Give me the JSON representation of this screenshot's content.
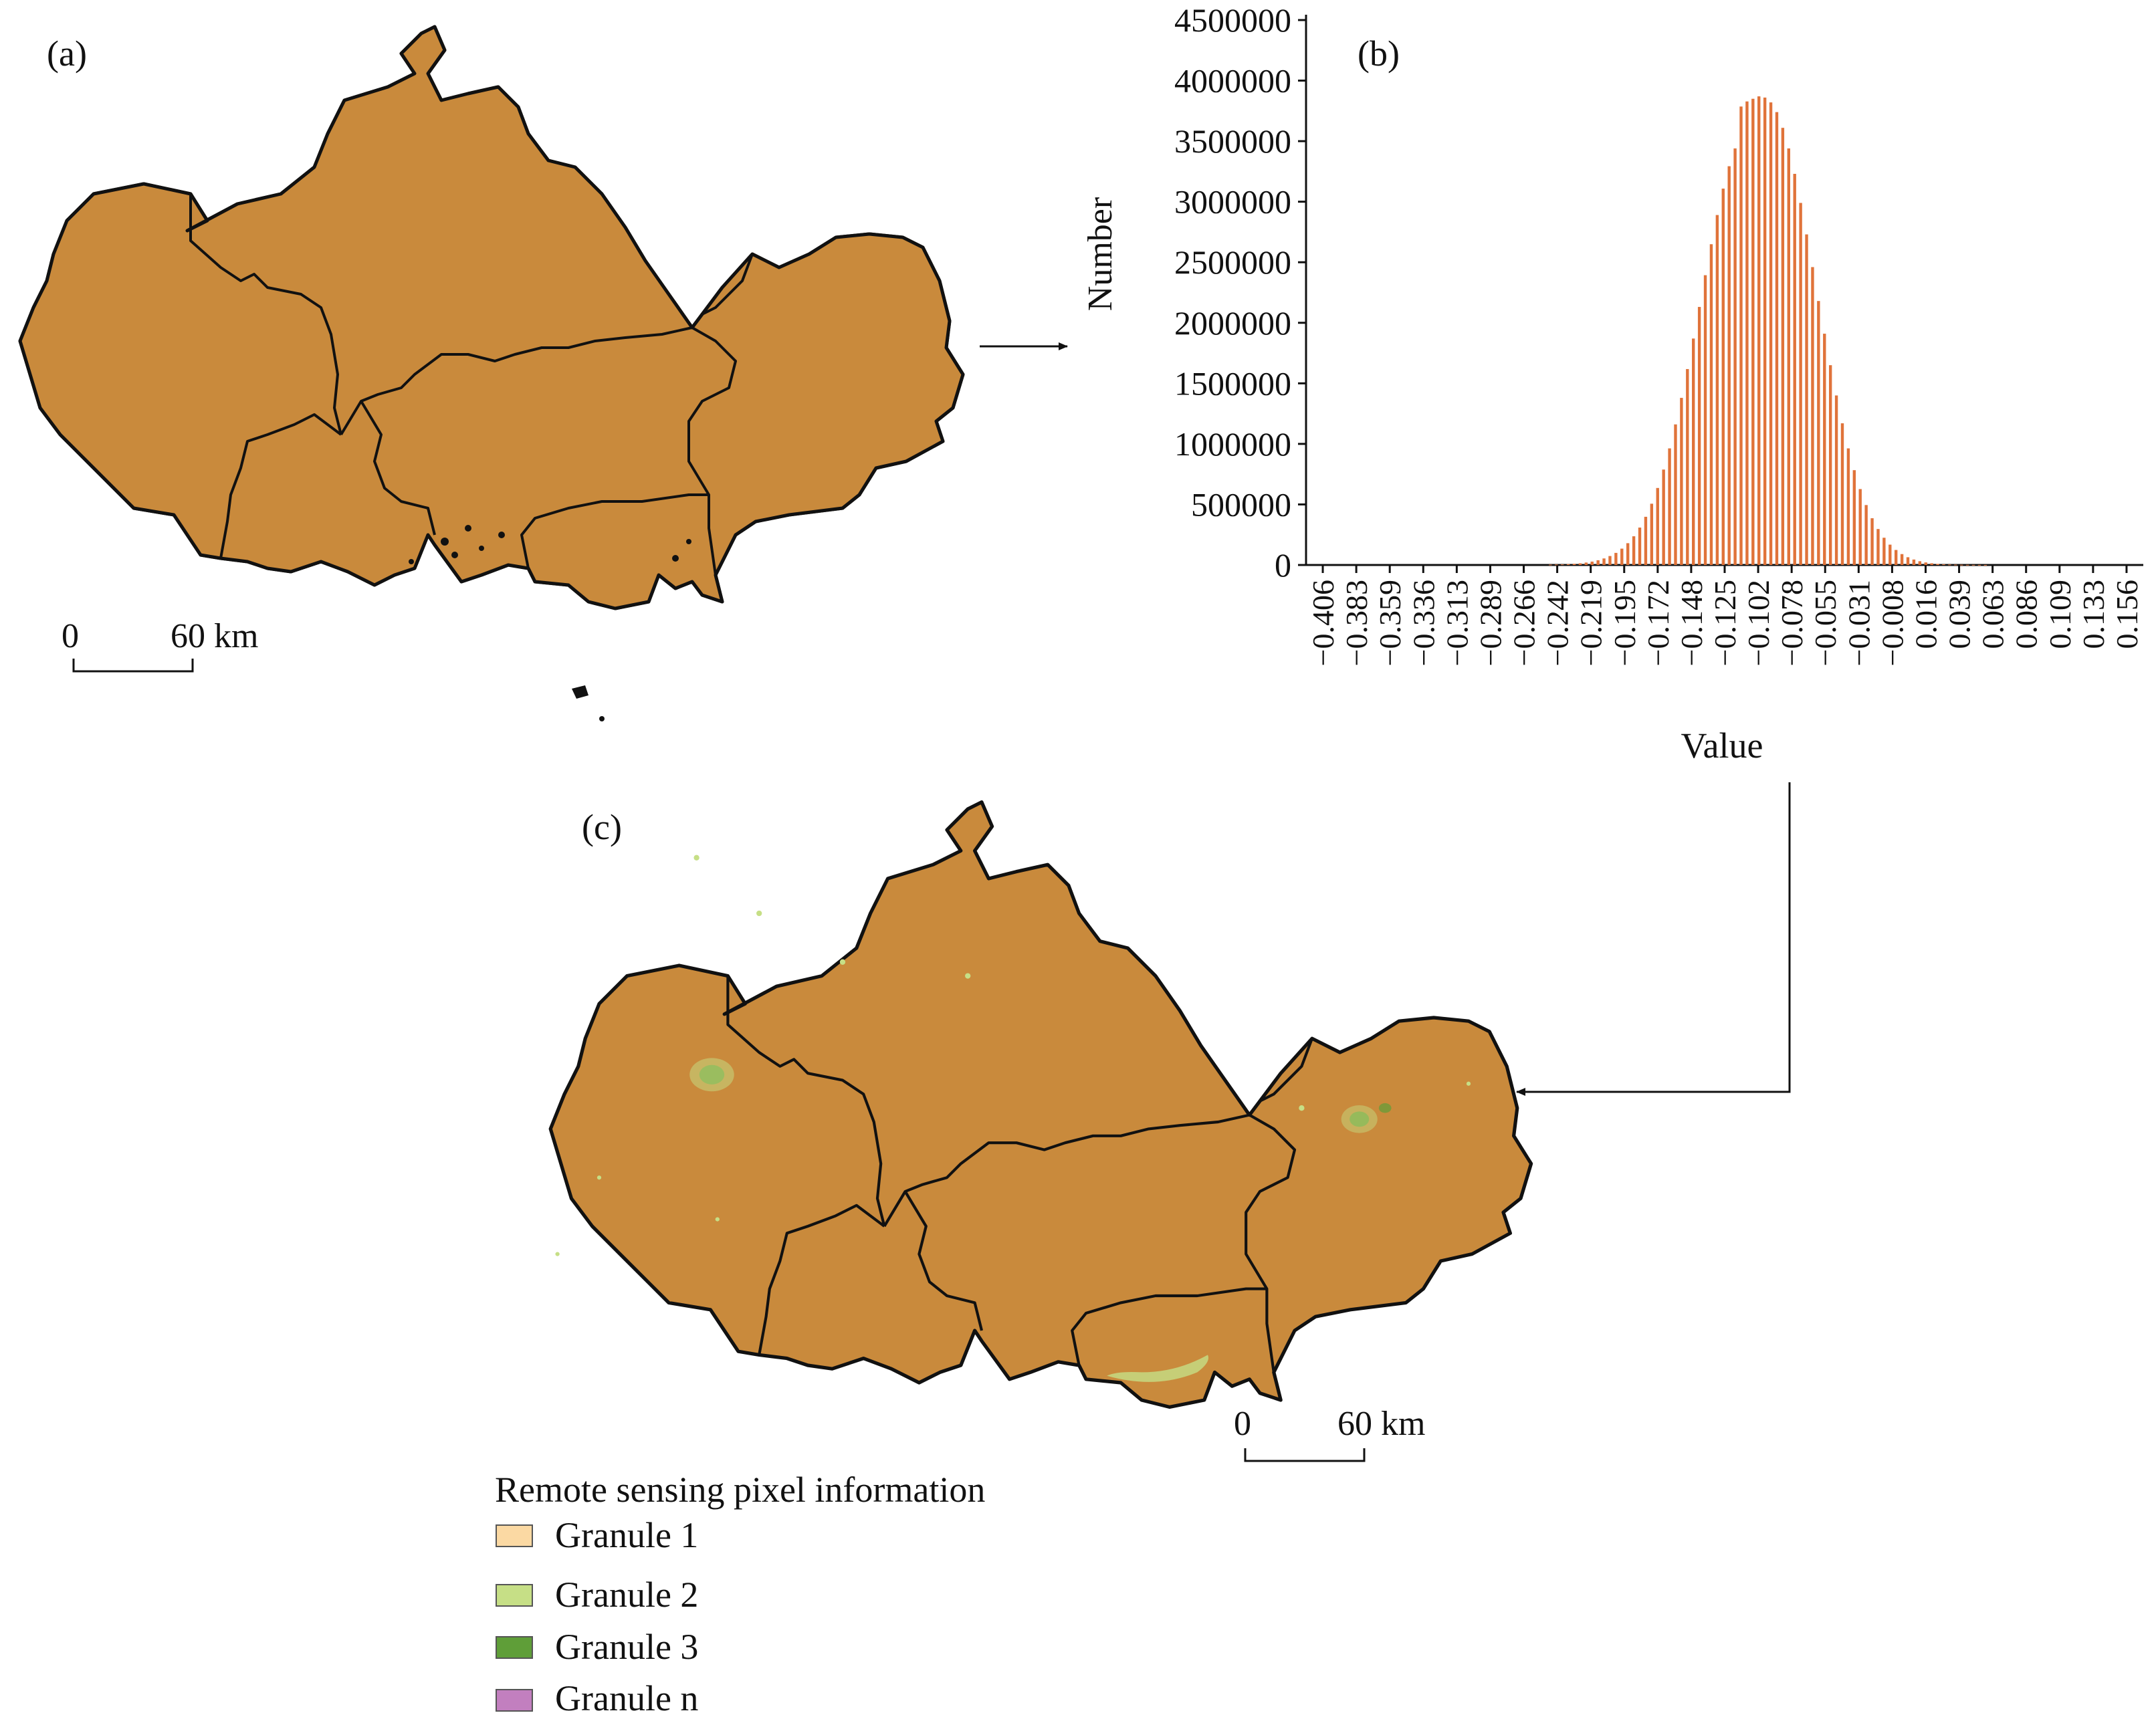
{
  "panels": {
    "a": {
      "label": "(a)"
    },
    "b": {
      "label": "(b)"
    },
    "c": {
      "label": "(c)"
    }
  },
  "scale_bar_a": {
    "start": "0",
    "end": "60 km"
  },
  "scale_bar_c": {
    "start": "0",
    "end": "60 km"
  },
  "map_colors": {
    "ndvi_base": "#c98a3c",
    "ndvi_dark": "#a5612a",
    "ndvi_light": "#e7b05c",
    "boundary": "#111111",
    "granule_light_green": "#c9dd87",
    "granule_green": "#6aa63c"
  },
  "chart_data": {
    "type": "bar",
    "title": "",
    "xlabel": "Value",
    "ylabel": "Number",
    "ylim": [
      0,
      4500000
    ],
    "y_ticks": [
      "4500000",
      "4000000",
      "3500000",
      "3000000",
      "2500000",
      "2000000",
      "1500000",
      "1000000",
      "500000",
      "0"
    ],
    "x_tick_labels": [
      "−0.406",
      "−0.383",
      "−0.359",
      "−0.336",
      "−0.313",
      "−0.289",
      "−0.266",
      "−0.242",
      "−0.219",
      "−0.195",
      "−0.172",
      "−0.148",
      "−0.125",
      "−0.102",
      "−0.078",
      "−0.055",
      "−0.031",
      "−0.008",
      "0.016",
      "0.039",
      "0.063",
      "0.086",
      "0.109",
      "0.133",
      "0.156"
    ],
    "x_range": [
      -0.406,
      0.156
    ],
    "bar_color": "#e0733a",
    "bars": {
      "x": [
        -0.242,
        -0.238,
        -0.234,
        -0.23,
        -0.226,
        -0.222,
        -0.218,
        -0.214,
        -0.21,
        -0.206,
        -0.202,
        -0.198,
        -0.194,
        -0.19,
        -0.186,
        -0.182,
        -0.178,
        -0.174,
        -0.17,
        -0.166,
        -0.162,
        -0.158,
        -0.154,
        -0.15,
        -0.146,
        -0.142,
        -0.138,
        -0.134,
        -0.13,
        -0.126,
        -0.122,
        -0.118,
        -0.114,
        -0.11,
        -0.106,
        -0.102,
        -0.098,
        -0.094,
        -0.09,
        -0.086,
        -0.082,
        -0.078,
        -0.074,
        -0.07,
        -0.066,
        -0.062,
        -0.058,
        -0.054,
        -0.05,
        -0.046,
        -0.042,
        -0.038,
        -0.034,
        -0.03,
        -0.026,
        -0.022,
        -0.018,
        -0.014,
        -0.01,
        -0.006,
        -0.002,
        0.002,
        0.006,
        0.01,
        0.014,
        0.018,
        0.022,
        0.026,
        0.03,
        0.034,
        0.038,
        0.042,
        0.046,
        0.05
      ],
      "values": [
        3000,
        4000,
        5000,
        7000,
        10000,
        14000,
        20000,
        28000,
        39000,
        54000,
        74000,
        100000,
        135000,
        180000,
        237000,
        309000,
        398000,
        506000,
        636000,
        788000,
        963000,
        1161000,
        1380000,
        1618000,
        1870000,
        2131000,
        2393000,
        2649000,
        2890000,
        3108000,
        3293000,
        3440000,
        3786000,
        3828000,
        3850000,
        3870000,
        3860000,
        3820000,
        3740000,
        3610000,
        3440000,
        3230000,
        2990000,
        2730000,
        2460000,
        2180000,
        1910000,
        1650000,
        1400000,
        1170000,
        963000,
        783000,
        627000,
        495000,
        386000,
        297000,
        225000,
        168000,
        124000,
        90000,
        64000,
        45000,
        31000,
        21000,
        14000,
        9000,
        6000,
        4000,
        3000,
        2000,
        1500,
        1000,
        800,
        500
      ]
    }
  },
  "legend": {
    "title": "Remote sensing pixel information",
    "items": [
      {
        "label": "Granule 1",
        "color": "#fbd9a3"
      },
      {
        "label": "Granule 2",
        "color": "#c6df86"
      },
      {
        "label": "Granule 3",
        "color": "#5f9e38"
      },
      {
        "label": "Granule n",
        "color": "#c27fbf"
      }
    ]
  }
}
